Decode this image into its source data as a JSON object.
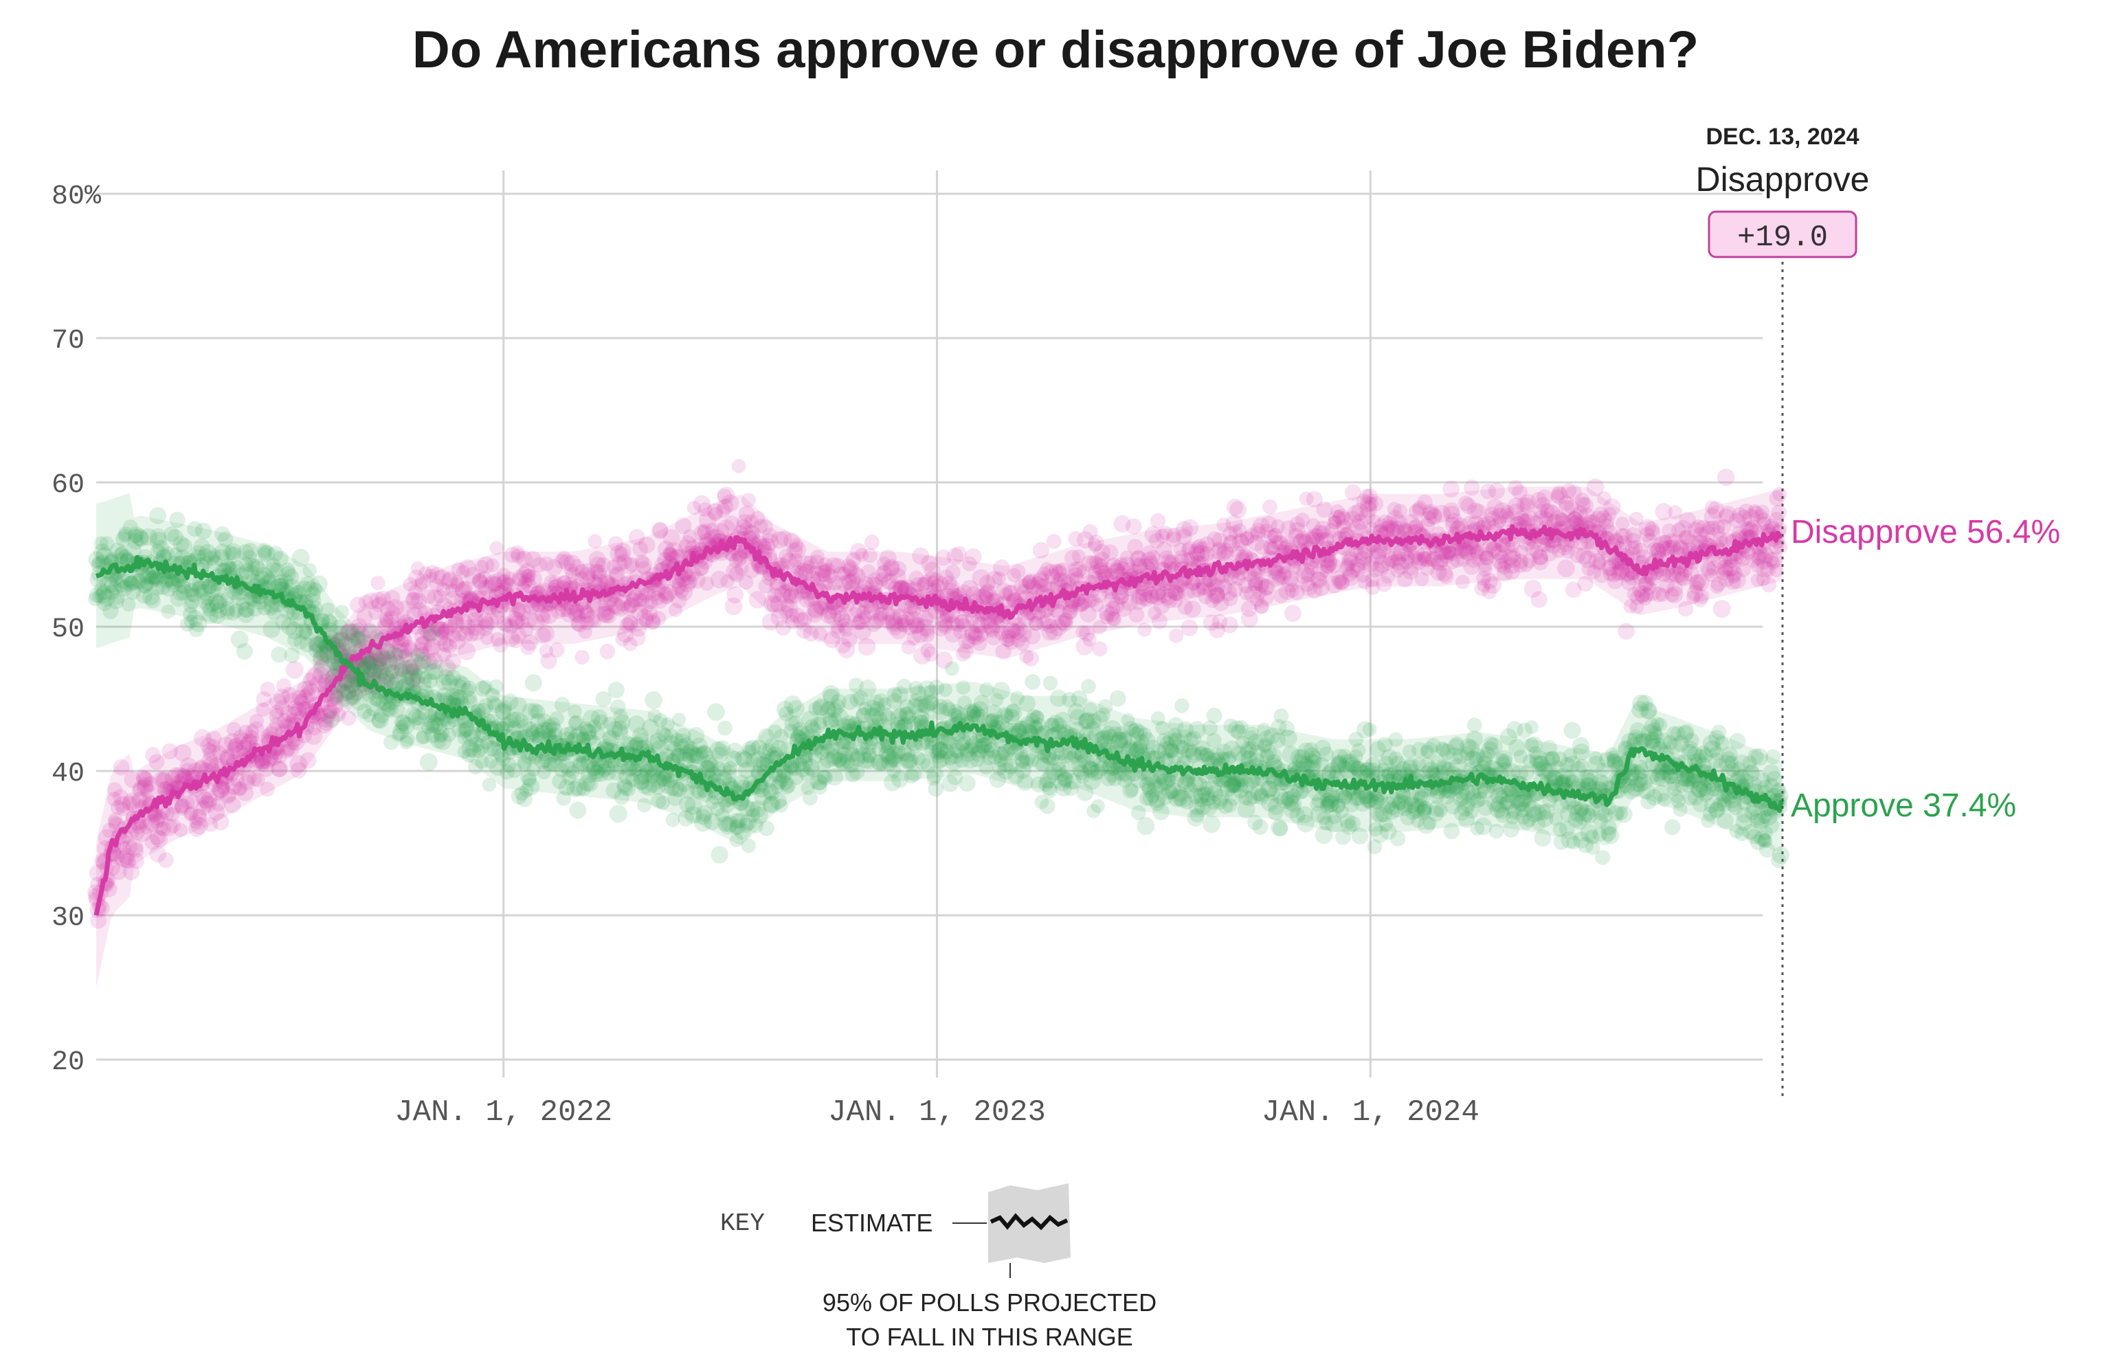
{
  "chart_data": {
    "type": "scatter",
    "title": "Do Americans approve or disapprove of Joe Biden?",
    "ylim": [
      20,
      80
    ],
    "y_ticks": [
      "80%",
      "70",
      "60",
      "50",
      "40",
      "30",
      "20"
    ],
    "y_tick_values": [
      80,
      70,
      60,
      50,
      40,
      30,
      20
    ],
    "x_range": [
      "2021-01-23",
      "2024-12-13"
    ],
    "x_ticks": [
      {
        "label": "JAN. 1, 2022",
        "date": "2022-01-01"
      },
      {
        "label": "JAN. 1, 2023",
        "date": "2023-01-01"
      },
      {
        "label": "JAN. 1, 2024",
        "date": "2024-01-01"
      }
    ],
    "grid": true,
    "series": [
      {
        "name": "Disapprove",
        "color": "#d63aa5",
        "end_label": "Disapprove 56.4%",
        "trend": [
          [
            "2021-01-23",
            30
          ],
          [
            "2021-02-05",
            35
          ],
          [
            "2021-03-01",
            37
          ],
          [
            "2021-04-01",
            38.5
          ],
          [
            "2021-05-01",
            39.5
          ],
          [
            "2021-06-01",
            41
          ],
          [
            "2021-07-15",
            43
          ],
          [
            "2021-08-10",
            46
          ],
          [
            "2021-08-30",
            48
          ],
          [
            "2021-10-01",
            49.5
          ],
          [
            "2021-11-15",
            51
          ],
          [
            "2022-01-01",
            52
          ],
          [
            "2022-03-01",
            52
          ],
          [
            "2022-05-01",
            53
          ],
          [
            "2022-07-01",
            55.5
          ],
          [
            "2022-07-20",
            56
          ],
          [
            "2022-08-15",
            54
          ],
          [
            "2022-10-01",
            52
          ],
          [
            "2022-12-01",
            52
          ],
          [
            "2023-01-15",
            51.5
          ],
          [
            "2023-03-01",
            51
          ],
          [
            "2023-05-01",
            52.5
          ],
          [
            "2023-07-01",
            53.5
          ],
          [
            "2023-09-01",
            54
          ],
          [
            "2023-11-01",
            55
          ],
          [
            "2024-01-01",
            56
          ],
          [
            "2024-03-01",
            56
          ],
          [
            "2024-05-01",
            56.5
          ],
          [
            "2024-07-01",
            56.5
          ],
          [
            "2024-08-15",
            54
          ],
          [
            "2024-09-15",
            54.5
          ],
          [
            "2024-11-01",
            55.5
          ],
          [
            "2024-12-13",
            56.4
          ]
        ]
      },
      {
        "name": "Approve",
        "color": "#2ca24e",
        "end_label": "Approve 37.4%",
        "trend": [
          [
            "2021-01-23",
            53.5
          ],
          [
            "2021-03-01",
            54.5
          ],
          [
            "2021-05-01",
            53.5
          ],
          [
            "2021-06-15",
            52.5
          ],
          [
            "2021-07-20",
            51
          ],
          [
            "2021-08-15",
            48
          ],
          [
            "2021-09-10",
            46
          ],
          [
            "2021-10-15",
            45
          ],
          [
            "2021-12-01",
            44
          ],
          [
            "2022-01-01",
            42
          ],
          [
            "2022-03-01",
            41.5
          ],
          [
            "2022-05-01",
            41
          ],
          [
            "2022-06-15",
            39.5
          ],
          [
            "2022-07-20",
            38
          ],
          [
            "2022-08-20",
            40.5
          ],
          [
            "2022-10-01",
            42.5
          ],
          [
            "2022-12-01",
            42.5
          ],
          [
            "2023-02-01",
            43
          ],
          [
            "2023-03-15",
            42
          ],
          [
            "2023-05-01",
            42
          ],
          [
            "2023-06-15",
            40.5
          ],
          [
            "2023-08-01",
            40
          ],
          [
            "2023-10-01",
            40
          ],
          [
            "2023-12-01",
            39
          ],
          [
            "2024-02-01",
            39
          ],
          [
            "2024-04-01",
            39.5
          ],
          [
            "2024-05-15",
            39
          ],
          [
            "2024-06-15",
            38.5
          ],
          [
            "2024-07-20",
            38
          ],
          [
            "2024-08-10",
            41.5
          ],
          [
            "2024-09-15",
            40.5
          ],
          [
            "2024-11-01",
            39
          ],
          [
            "2024-12-13",
            37.4
          ]
        ]
      }
    ],
    "hover": {
      "date": "DEC. 13, 2024",
      "label": "Disapprove",
      "value": "+19.0"
    },
    "key": {
      "title": "KEY",
      "estimate": "ESTIMATE",
      "range_line1": "95% OF POLLS PROJECTED",
      "range_line2": "TO FALL IN THIS RANGE"
    }
  }
}
